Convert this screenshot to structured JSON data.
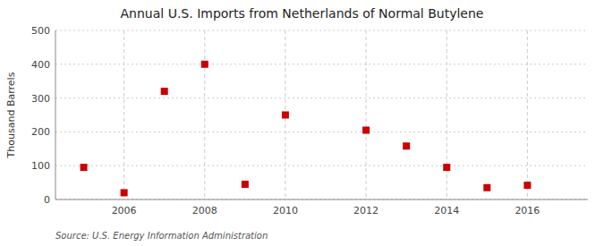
{
  "chart_data": {
    "type": "scatter",
    "title": "Annual U.S. Imports from Netherlands of Normal Butylene",
    "y_label": "Thousand Barrels",
    "annotations": [
      "Source: U.S. Energy Information Administration"
    ],
    "x": [
      2005,
      2006,
      2007,
      2008,
      2009,
      2010,
      2012,
      2013,
      2014,
      2015,
      2016
    ],
    "values": [
      95,
      20,
      320,
      400,
      45,
      250,
      205,
      158,
      95,
      35,
      42
    ],
    "color": "#cc0000",
    "marker": "square",
    "xlim": [
      2004.3,
      2017.5
    ],
    "ylim": [
      0,
      500
    ],
    "xticks": [
      2006,
      2008,
      2010,
      2012,
      2014,
      2016
    ],
    "yticks": [
      0,
      100,
      200,
      300,
      400,
      500
    ],
    "grid": true
  }
}
